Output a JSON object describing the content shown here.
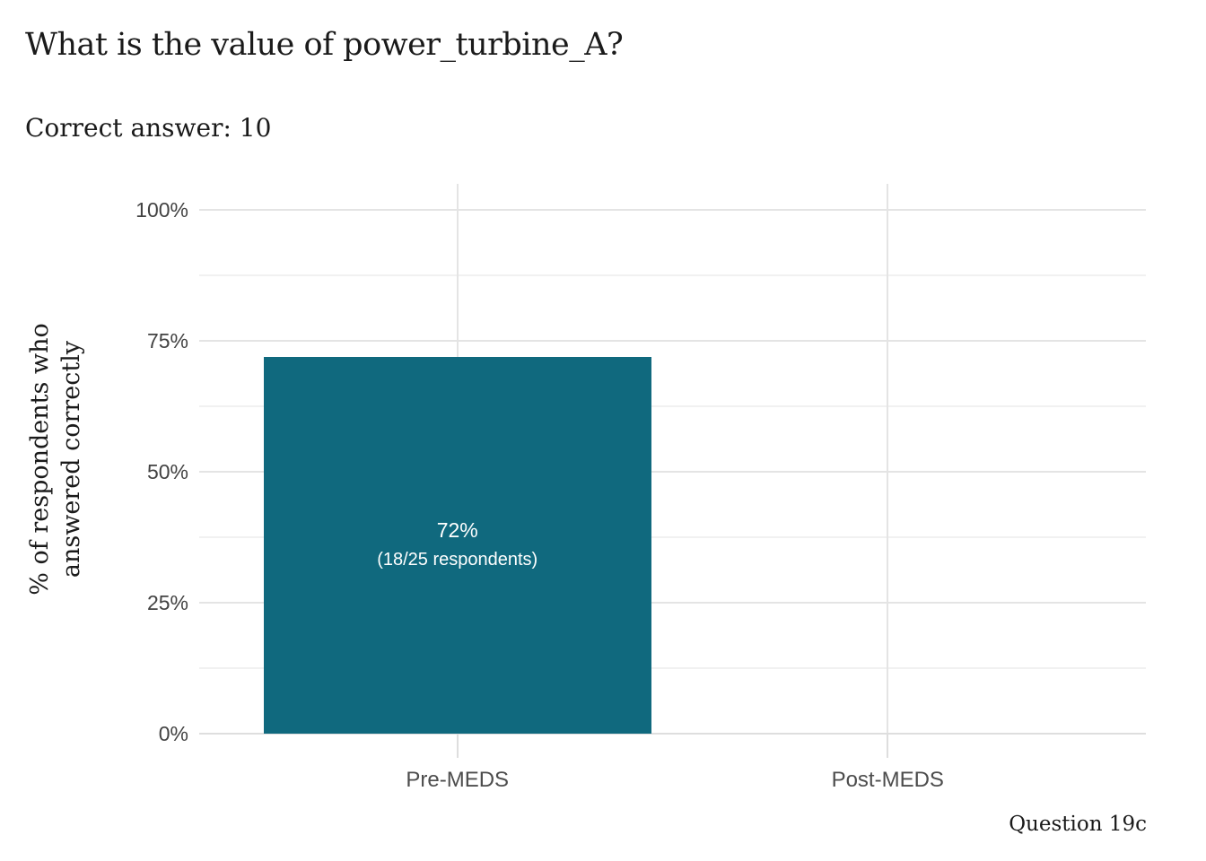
{
  "header": {
    "title": "What is the value of power_turbine_A?",
    "subtitle": "Correct answer: 10"
  },
  "caption": "Question 19c",
  "colors": {
    "background": "#ffffff",
    "title_text": "#1a1a1a",
    "bar_fill": "#10697e",
    "bar_label": "#ffffff",
    "grid_major": "#e4e4e4",
    "grid_minor": "#f1f1f1",
    "axis_line": "#dedede",
    "axis_tick": "#dedede",
    "y_tick_label": "#424242",
    "x_tick_label": "#4d4d4d"
  },
  "chart_data": {
    "type": "bar",
    "title": "What is the value of power_turbine_A?",
    "subtitle": "Correct answer: 10",
    "caption": "Question 19c",
    "categories": [
      "Pre-MEDS",
      "Post-MEDS"
    ],
    "values": [
      72,
      null
    ],
    "bar_labels": [
      {
        "line1": "72%",
        "line2": "(18/25 respondents)"
      },
      null
    ],
    "ylabel_lines": [
      "% of respondents who",
      "answered correctly"
    ],
    "xlabel": "",
    "ylim": [
      0,
      100
    ],
    "yticks": [
      0,
      25,
      50,
      75,
      100
    ],
    "ytick_labels": [
      "0%",
      "25%",
      "50%",
      "75%",
      "100%"
    ],
    "yminor_ticks": [
      12.5,
      37.5,
      62.5,
      87.5
    ],
    "grid": "horizontal major and minor gridlines; vertical gridline at each category center",
    "legend": "none"
  }
}
